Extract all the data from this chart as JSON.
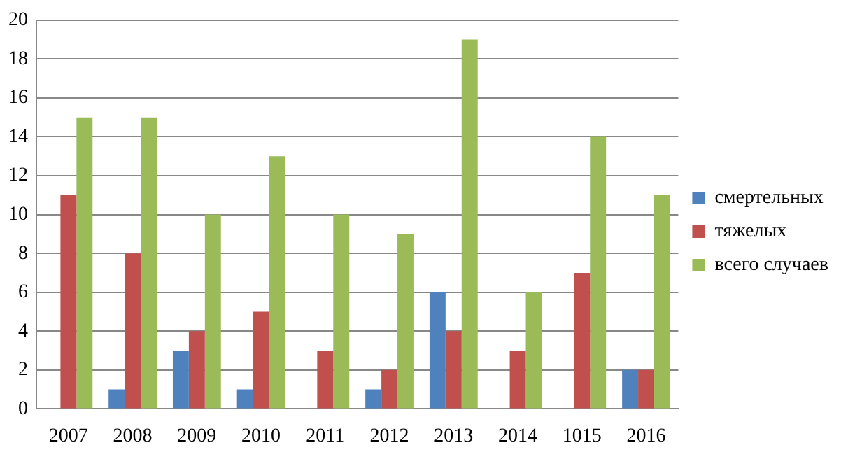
{
  "chart_data": {
    "type": "bar",
    "categories": [
      "2007",
      "2008",
      "2009",
      "2010",
      "2011",
      "2012",
      "2013",
      "2014",
      "1015",
      "2016"
    ],
    "series": [
      {
        "name": "смертельных",
        "color": "#4f81bd",
        "values": [
          0,
          1,
          3,
          1,
          0,
          1,
          6,
          0,
          0,
          2
        ]
      },
      {
        "name": "тяжелых",
        "color": "#c0504d",
        "values": [
          11,
          8,
          4,
          5,
          3,
          2,
          4,
          3,
          7,
          2
        ]
      },
      {
        "name": "всего случаев",
        "color": "#9bbb59",
        "values": [
          15,
          15,
          10,
          13,
          10,
          9,
          19,
          6,
          14,
          11
        ]
      }
    ],
    "ylim": [
      0,
      20
    ],
    "yticks": [
      0,
      2,
      4,
      6,
      8,
      10,
      12,
      14,
      16,
      18,
      20
    ],
    "grid": "y",
    "legend": "right"
  }
}
